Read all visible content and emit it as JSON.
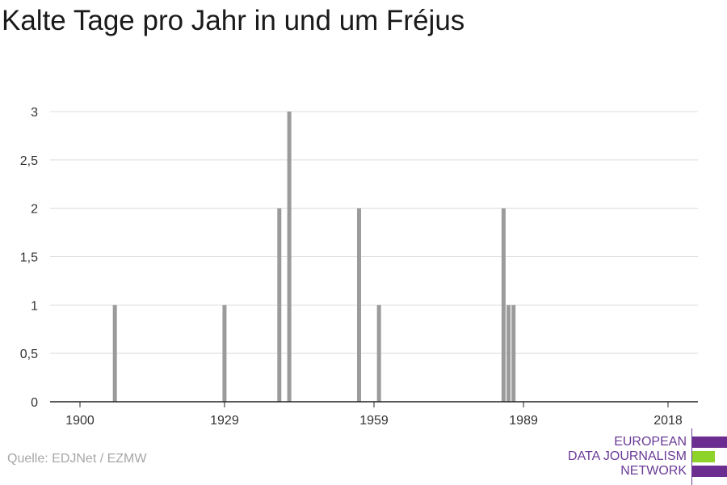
{
  "title": "Kalte Tage pro Jahr in und um Fréjus",
  "source": "Quelle: EDJNet / EZMW",
  "logo": {
    "line1": "EUROPEAN",
    "line2": "DATA JOURNALISM",
    "line3": "NETWORK",
    "colors": {
      "purple": "#6b2d8f",
      "green": "#8ed32a"
    }
  },
  "chart_data": {
    "type": "bar",
    "x": [
      1907,
      1929,
      1940,
      1942,
      1956,
      1960,
      1985,
      1986,
      1987
    ],
    "values": [
      1,
      1,
      2,
      3,
      2,
      1,
      2,
      1,
      1
    ],
    "xlim": [
      1894,
      2024
    ],
    "ylim": [
      0,
      3
    ],
    "xticks": [
      1900,
      1929,
      1959,
      1989,
      2018
    ],
    "yticks": [
      0,
      0.5,
      1,
      1.5,
      2,
      2.5,
      3
    ],
    "ytick_labels": [
      "0",
      "0,5",
      "1",
      "1,5",
      "2",
      "2,5",
      "3"
    ],
    "bar_color": "#9b9b9b",
    "grid": true,
    "xlabel": "",
    "ylabel": ""
  }
}
